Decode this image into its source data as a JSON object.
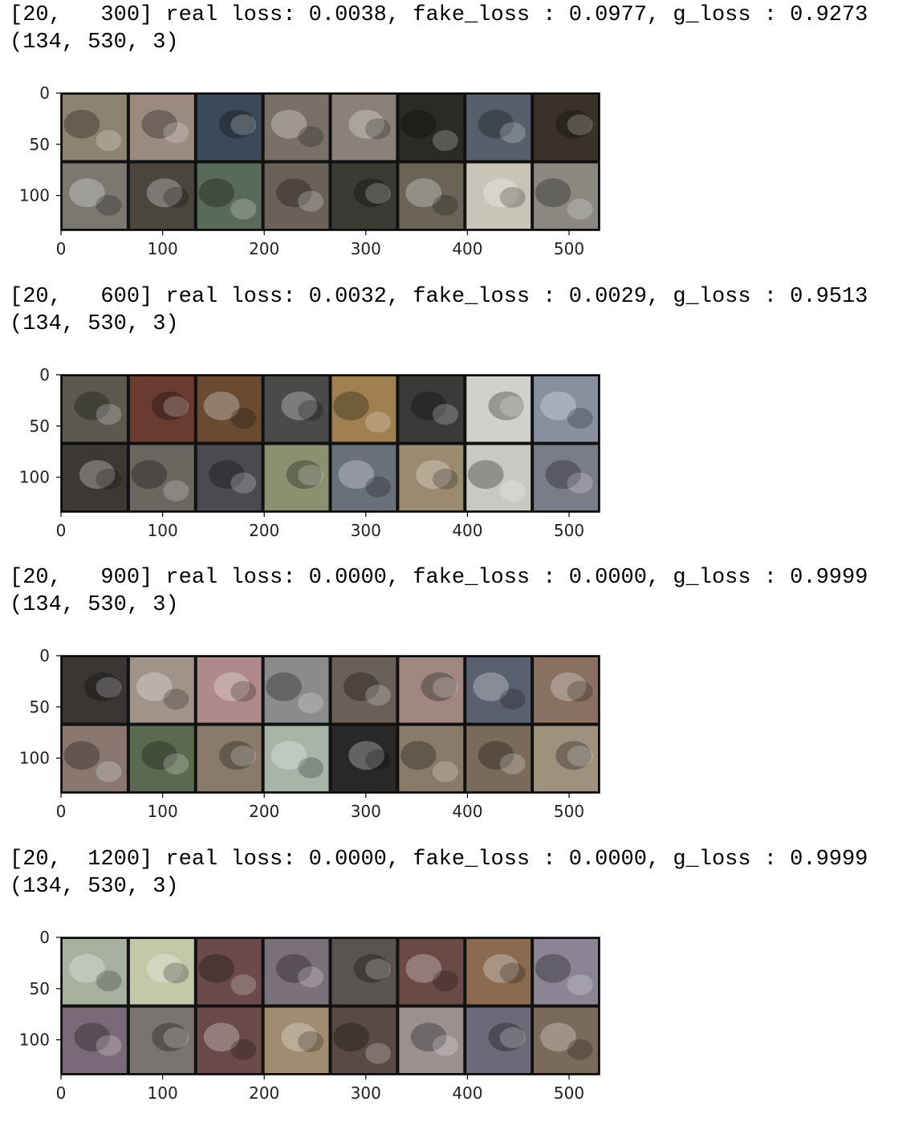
{
  "output_blocks": [
    {
      "log_line": "[20,   300] real loss: 0.0038, fake_loss : 0.0977, g_loss : 0.9273",
      "shape_line": "(134, 530, 3)",
      "colors": [
        "#8b8470",
        "#9b8a80",
        "#3a4a5a",
        "#7a7068",
        "#8a8278",
        "#2c2a26",
        "#56606a",
        "#3a3228",
        "#7a7870",
        "#4a463e",
        "#5a6a5a",
        "#6a6258",
        "#3c3a34",
        "#6a6456",
        "#c8c4b8",
        "#8a8880"
      ]
    },
    {
      "log_line": "[20,   600] real loss: 0.0032, fake_loss : 0.0029, g_loss : 0.9513",
      "shape_line": "(134, 530, 3)",
      "colors": [
        "#5c5a50",
        "#6a3c30",
        "#6a4a30",
        "#4a4a48",
        "#a08050",
        "#3a3a38",
        "#d0d0cc",
        "#8890a0",
        "#3c3834",
        "#6a6660",
        "#4a4a50",
        "#8a9070",
        "#6a707a",
        "#9a8a70",
        "#c8c8c4",
        "#7a7c88"
      ]
    },
    {
      "log_line": "[20,   900] real loss: 0.0000, fake_loss : 0.0000, g_loss : 0.9999",
      "shape_line": "(134, 530, 3)",
      "colors": [
        "#3a3634",
        "#a0948a",
        "#b08a8a",
        "#8a8c8c",
        "#6a6058",
        "#a08880",
        "#5a6070",
        "#8a7060",
        "#8a7870",
        "#5a6a50",
        "#8a7a6a",
        "#a8b4a8",
        "#2a2826",
        "#8a7a6a",
        "#7a6a5a",
        "#a0907e"
      ]
    },
    {
      "log_line": "[20,  1200] real loss: 0.0000, fake_loss : 0.0000, g_loss : 0.9999",
      "shape_line": "(134, 530, 3)",
      "colors": [
        "#a8b0a0",
        "#c4c8a8",
        "#6a4a4a",
        "#7a7078",
        "#5a5450",
        "#6a4a44",
        "#8a6a50",
        "#8a8494",
        "#7a6a78",
        "#7a7470",
        "#6a4a48",
        "#a08c70",
        "#5a4a46",
        "#9a9090",
        "#6a6a78",
        "#7a6a5a"
      ]
    }
  ],
  "plot_axes": {
    "x_ticks": [
      "0",
      "100",
      "200",
      "300",
      "400",
      "500"
    ],
    "y_ticks": [
      "0",
      "50",
      "100"
    ],
    "xlim": [
      0,
      530
    ],
    "ylim": [
      0,
      134
    ]
  }
}
